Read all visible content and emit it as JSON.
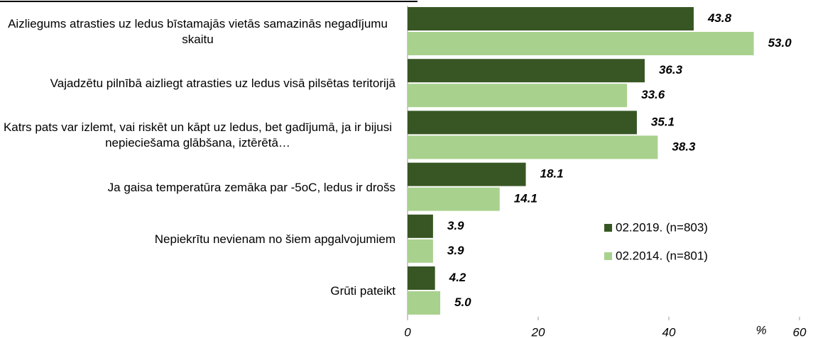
{
  "chart_data": {
    "type": "hbar",
    "categories": [
      "Aizliegums atrasties uz ledus bīstamajās vietās samazinās negadījumu skaitu",
      "Vajadzētu pilnībā aizliegt atrasties uz ledus visā pilsētas teritorijā",
      "Katrs pats var izlemt, vai riskēt un kāpt uz ledus, bet gadījumā, ja ir bijusi nepieciešama glābšana, iztērētā…",
      "Ja gaisa temperatūra zemāka par -5oC, ledus ir drošs",
      "Nepiekrītu nevienam no šiem apgalvojumiem",
      "Grūti pateikt"
    ],
    "series": [
      {
        "name": "02.2019. (n=803)",
        "color": "#375623",
        "values": [
          43.8,
          36.3,
          35.1,
          18.1,
          3.9,
          4.2
        ],
        "value_labels": [
          "43.8",
          "36.3",
          "35.1",
          "18.1",
          "3.9",
          "4.2"
        ]
      },
      {
        "name": "02.2014. (n=801)",
        "color": "#a9d18e",
        "values": [
          53.0,
          33.6,
          38.3,
          14.1,
          3.9,
          5.0
        ],
        "value_labels": [
          "53.0",
          "33.6",
          "38.3",
          "14.1",
          "3.9",
          "5.0"
        ]
      }
    ],
    "x_label": "%",
    "xlim": [
      0,
      60
    ],
    "xticks": [
      0,
      20,
      40,
      60
    ]
  }
}
